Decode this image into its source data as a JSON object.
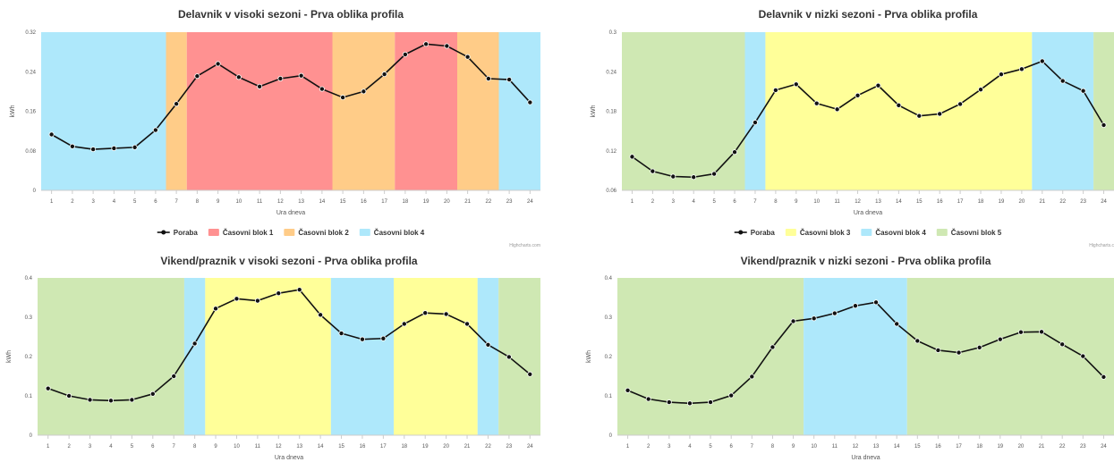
{
  "chart_data": [
    {
      "type": "line",
      "title": "Delavnik v visoki sezoni - Prva oblika profila",
      "xlabel": "Ura dneva",
      "ylabel": "kWh",
      "x": [
        1,
        2,
        3,
        4,
        5,
        6,
        7,
        8,
        9,
        10,
        11,
        12,
        13,
        14,
        15,
        16,
        17,
        18,
        19,
        20,
        21,
        22,
        23,
        24
      ],
      "ylim": [
        0,
        0.32
      ],
      "yticks": [
        0,
        0.08,
        0.16,
        0.24,
        0.32
      ],
      "ytick_labels": [
        "0",
        "0.08",
        "0.16",
        "0.24",
        "0.32"
      ],
      "series": [
        {
          "name": "Poraba",
          "values": [
            0.113,
            0.089,
            0.083,
            0.085,
            0.087,
            0.122,
            0.175,
            0.231,
            0.256,
            0.229,
            0.21,
            0.226,
            0.232,
            0.205,
            0.188,
            0.2,
            0.235,
            0.275,
            0.296,
            0.292,
            0.27,
            0.226,
            0.224,
            0.178
          ]
        }
      ],
      "bands": [
        {
          "from": 1,
          "to": 6,
          "block": "Časovni blok 4"
        },
        {
          "from": 7,
          "to": 7,
          "block": "Časovni blok 2"
        },
        {
          "from": 8,
          "to": 14,
          "block": "Časovni blok 1"
        },
        {
          "from": 15,
          "to": 17,
          "block": "Časovni blok 2"
        },
        {
          "from": 18,
          "to": 20,
          "block": "Časovni blok 1"
        },
        {
          "from": 21,
          "to": 22,
          "block": "Časovni blok 2"
        },
        {
          "from": 23,
          "to": 24,
          "block": "Časovni blok 4"
        }
      ],
      "legend": [
        "Poraba",
        "Časovni blok 1",
        "Časovni blok 2",
        "Časovni blok 4"
      ],
      "legend_position": "bottom-center",
      "credits": "Highcharts.com",
      "grid": false
    },
    {
      "type": "line",
      "title": "Delavnik v nizki sezoni - Prva oblika profila",
      "xlabel": "Ura dneva",
      "ylabel": "kWh",
      "x": [
        1,
        2,
        3,
        4,
        5,
        6,
        7,
        8,
        9,
        10,
        11,
        12,
        13,
        14,
        15,
        16,
        17,
        18,
        19,
        20,
        21,
        22,
        23,
        24
      ],
      "ylim": [
        0.06,
        0.3
      ],
      "yticks": [
        0.06,
        0.12,
        0.18,
        0.24,
        0.3
      ],
      "ytick_labels": [
        "0.06",
        "0.12",
        "0.18",
        "0.24",
        "0.3"
      ],
      "series": [
        {
          "name": "Poraba",
          "values": [
            0.111,
            0.089,
            0.081,
            0.08,
            0.085,
            0.118,
            0.163,
            0.212,
            0.221,
            0.192,
            0.183,
            0.204,
            0.219,
            0.189,
            0.173,
            0.176,
            0.191,
            0.213,
            0.236,
            0.244,
            0.256,
            0.226,
            0.211,
            0.159
          ]
        }
      ],
      "bands": [
        {
          "from": 1,
          "to": 6,
          "block": "Časovni blok 5"
        },
        {
          "from": 7,
          "to": 7,
          "block": "Časovni blok 4"
        },
        {
          "from": 8,
          "to": 20,
          "block": "Časovni blok 3"
        },
        {
          "from": 21,
          "to": 23,
          "block": "Časovni blok 4"
        },
        {
          "from": 24,
          "to": 24,
          "block": "Časovni blok 5"
        }
      ],
      "legend": [
        "Poraba",
        "Časovni blok 3",
        "Časovni blok 4",
        "Časovni blok 5"
      ],
      "legend_position": "bottom-center",
      "credits": "Highcharts.c",
      "grid": false
    },
    {
      "type": "line",
      "title": "Vikend/praznik v visoki sezoni - Prva oblika profila",
      "xlabel": "Ura dneva",
      "ylabel": "kWh",
      "x": [
        1,
        2,
        3,
        4,
        5,
        6,
        7,
        8,
        9,
        10,
        11,
        12,
        13,
        14,
        15,
        16,
        17,
        18,
        19,
        20,
        21,
        22,
        23,
        24
      ],
      "ylim": [
        0,
        0.4
      ],
      "yticks": [
        0,
        0.1,
        0.2,
        0.3,
        0.4
      ],
      "ytick_labels": [
        "0",
        "0.1",
        "0.2",
        "0.3",
        "0.4"
      ],
      "series": [
        {
          "name": "Poraba",
          "values": [
            0.119,
            0.1,
            0.09,
            0.088,
            0.09,
            0.105,
            0.15,
            0.233,
            0.322,
            0.347,
            0.342,
            0.361,
            0.37,
            0.306,
            0.259,
            0.244,
            0.246,
            0.283,
            0.311,
            0.308,
            0.283,
            0.23,
            0.199,
            0.155
          ]
        }
      ],
      "bands": [
        {
          "from": 1,
          "to": 7,
          "block": "Časovni blok 5"
        },
        {
          "from": 8,
          "to": 8,
          "block": "Časovni blok 4"
        },
        {
          "from": 9,
          "to": 14,
          "block": "Časovni blok 3"
        },
        {
          "from": 15,
          "to": 17,
          "block": "Časovni blok 4"
        },
        {
          "from": 18,
          "to": 21,
          "block": "Časovni blok 3"
        },
        {
          "from": 22,
          "to": 22,
          "block": "Časovni blok 4"
        },
        {
          "from": 23,
          "to": 24,
          "block": "Časovni blok 5"
        }
      ],
      "grid": false
    },
    {
      "type": "line",
      "title": "Vikend/praznik v nizki sezoni - Prva oblika profila",
      "xlabel": "Ura dneva",
      "ylabel": "kWh",
      "x": [
        1,
        2,
        3,
        4,
        5,
        6,
        7,
        8,
        9,
        10,
        11,
        12,
        13,
        14,
        15,
        16,
        17,
        18,
        19,
        20,
        21,
        22,
        23,
        24
      ],
      "ylim": [
        0,
        0.4
      ],
      "yticks": [
        0,
        0.1,
        0.2,
        0.3,
        0.4
      ],
      "ytick_labels": [
        "0",
        "0.1",
        "0.2",
        "0.3",
        "0.4"
      ],
      "series": [
        {
          "name": "Poraba",
          "values": [
            0.114,
            0.092,
            0.084,
            0.081,
            0.084,
            0.101,
            0.149,
            0.224,
            0.29,
            0.297,
            0.31,
            0.329,
            0.338,
            0.283,
            0.24,
            0.216,
            0.21,
            0.223,
            0.244,
            0.262,
            0.263,
            0.231,
            0.201,
            0.148
          ]
        }
      ],
      "bands": [
        {
          "from": 1,
          "to": 9,
          "block": "Časovni blok 5"
        },
        {
          "from": 10,
          "to": 14,
          "block": "Časovni blok 4"
        },
        {
          "from": 15,
          "to": 24,
          "block": "Časovni blok 5"
        }
      ],
      "grid": false
    }
  ],
  "colors": {
    "Časovni blok 1": "#ff9191",
    "Časovni blok 2": "#ffcc88",
    "Časovni blok 3": "#ffff99",
    "Časovni blok 4": "#aee8fb",
    "Časovni blok 5": "#cfe8b3",
    "line": "#111111",
    "axis": "#cccccc",
    "text": "#333333"
  }
}
